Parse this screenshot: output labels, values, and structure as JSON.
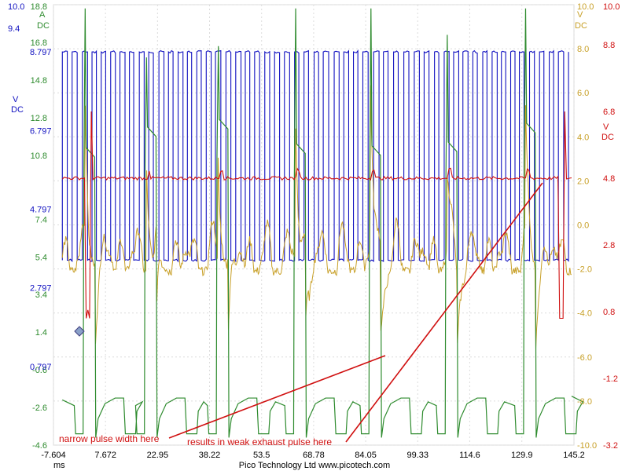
{
  "chart_data": {
    "type": "line",
    "title": "",
    "xlabel": "",
    "x_unit": "ms",
    "xlim": [
      -7.604,
      145.2
    ],
    "x_ticks": [
      "-7.604",
      "7.672",
      "22.95",
      "38.22",
      "53.5",
      "68.78",
      "84.05",
      "99.33",
      "114.6",
      "129.9",
      "145.2"
    ],
    "footer": "Pico Technology Ltd   www.picotech.com",
    "grid": true,
    "axes": [
      {
        "id": "ch_green",
        "unit": "A",
        "coupling": "DC",
        "color": "#2e8b2e",
        "range": [
          -4.6,
          18.8
        ],
        "ticks": [
          "18.8",
          "16.8",
          "14.8",
          "12.8",
          "10.8",
          "7.4",
          "5.4",
          "3.4",
          "1.4",
          "-0.6",
          "-2.6",
          "-4.6"
        ]
      },
      {
        "id": "ch_blue",
        "unit": "V",
        "coupling": "DC",
        "color": "#1010c0",
        "range": [
          -1.203,
          10.0
        ],
        "ticks": [
          "10.0",
          "9.4",
          "8.797",
          "6.797",
          "4.797",
          "2.797",
          "0.797"
        ]
      },
      {
        "id": "ch_orange",
        "unit": "V",
        "coupling": "DC",
        "color": "#c8a028",
        "range": [
          -10.0,
          10.0
        ],
        "ticks": [
          "10.0",
          "8.0",
          "6.0",
          "4.0",
          "2.0",
          "0.0",
          "-2.0",
          "-4.0",
          "-6.0",
          "-8.0",
          "-10.0"
        ]
      },
      {
        "id": "ch_red",
        "unit": "V",
        "coupling": "DC",
        "color": "#d01010",
        "range": [
          -3.2,
          10.0
        ],
        "ticks": [
          "10.0",
          "8.8",
          "6.8",
          "4.8",
          "2.8",
          "0.8",
          "-1.2",
          "-3.2"
        ]
      }
    ],
    "series": [
      {
        "channel": "ch_green",
        "pulse_times_ms": [
          1.5,
          19.5,
          40.6,
          63.3,
          85.4,
          107.8,
          130.8
        ],
        "peak_A": [
          18.6,
          16.0,
          16.6,
          18.6,
          18.6,
          17.2,
          18.6
        ],
        "hold_A": [
          10.7,
          11.8,
          12.2,
          10.9,
          10.8,
          11.0,
          12.0
        ],
        "base_A": -2.5
      },
      {
        "channel": "ch_blue",
        "period_ms": 2.9,
        "high_V": 8.8,
        "low_V": 3.5
      },
      {
        "channel": "ch_orange",
        "baseline_V": -1.5,
        "spike_times_ms": [
          1.5,
          19.5,
          40.6,
          63.3,
          85.4,
          107.8,
          130.8
        ]
      },
      {
        "channel": "ch_red",
        "baseline_V": 4.8,
        "drop_V": 0.6
      }
    ],
    "annotations": [
      {
        "text": "narrow pulse width here",
        "color": "#d01010"
      },
      {
        "text": "results in weak exhaust pulse here",
        "color": "#d01010"
      }
    ]
  }
}
